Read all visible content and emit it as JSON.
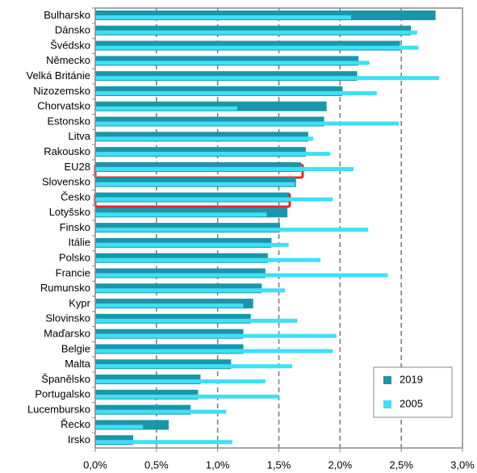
{
  "chart_data": {
    "type": "barh",
    "categories": [
      "Bulharsko",
      "Dánsko",
      "Švédsko",
      "Německo",
      "Velká Británie",
      "Nizozemsko",
      "Chorvatsko",
      "Estonsko",
      "Litva",
      "Rakousko",
      "EU28",
      "Slovensko",
      "Česko",
      "Lotyšsko",
      "Finsko",
      "Itálie",
      "Polsko",
      "Francie",
      "Rumunsko",
      "Kypr",
      "Slovinsko",
      "Maďarsko",
      "Belgie",
      "Malta",
      "Španělsko",
      "Portugalsko",
      "Lucembursko",
      "Řecko",
      "Irsko"
    ],
    "series": [
      {
        "name": "2019",
        "color": "#1a96ac",
        "values": [
          2.78,
          2.58,
          2.49,
          2.15,
          2.14,
          2.02,
          1.89,
          1.87,
          1.74,
          1.72,
          1.68,
          1.64,
          1.58,
          1.57,
          1.51,
          1.44,
          1.41,
          1.39,
          1.36,
          1.29,
          1.27,
          1.21,
          1.21,
          1.11,
          0.86,
          0.84,
          0.78,
          0.6,
          0.31
        ]
      },
      {
        "name": "2005",
        "color": "#3ee0f5",
        "values": [
          2.09,
          2.63,
          2.64,
          2.24,
          2.81,
          2.3,
          1.16,
          2.48,
          1.78,
          1.92,
          2.11,
          1.63,
          1.94,
          1.4,
          2.23,
          1.58,
          1.84,
          2.39,
          1.55,
          1.21,
          1.65,
          1.97,
          1.94,
          1.61,
          1.39,
          1.5,
          1.07,
          0.39,
          1.12
        ]
      }
    ],
    "xlim": [
      0,
      3
    ],
    "xticks": [
      {
        "value": 0,
        "label": "0,0%"
      },
      {
        "value": 0.5,
        "label": "0,5%"
      },
      {
        "value": 1,
        "label": "1,0%"
      },
      {
        "value": 1.5,
        "label": "1,5%"
      },
      {
        "value": 2,
        "label": "2,0%"
      },
      {
        "value": 2.5,
        "label": "2,5%"
      },
      {
        "value": 3,
        "label": "3,0%"
      }
    ],
    "grid": true,
    "legend": "lower right"
  }
}
